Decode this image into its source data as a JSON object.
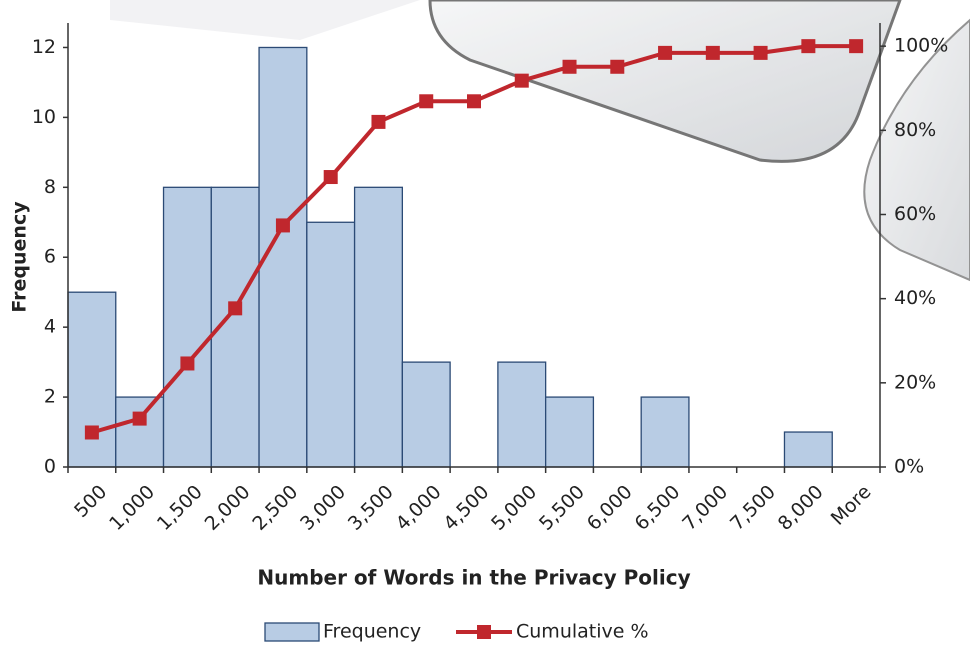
{
  "chart_data": {
    "type": "bar",
    "x_label": "Number of Words in the Privacy Policy",
    "y_label": "Frequency",
    "categories": [
      "500",
      "1,000",
      "1,500",
      "2,000",
      "2,500",
      "3,000",
      "3,500",
      "4,000",
      "4,500",
      "5,000",
      "5,500",
      "6,000",
      "6,500",
      "7,000",
      "7,500",
      "8,000",
      "More"
    ],
    "series": [
      {
        "name": "Frequency",
        "type": "bar",
        "color": "#b8cce4",
        "values": [
          5,
          2,
          8,
          8,
          12,
          7,
          8,
          3,
          0,
          3,
          2,
          0,
          2,
          0,
          0,
          1,
          0
        ]
      },
      {
        "name": "Cumulative %",
        "type": "line",
        "axis": "y2",
        "color": "#c0272d",
        "values": [
          8.2,
          11.5,
          24.6,
          37.7,
          57.4,
          68.9,
          82.0,
          86.9,
          86.9,
          91.8,
          95.1,
          95.1,
          98.4,
          98.4,
          98.4,
          100,
          100
        ]
      }
    ],
    "ylim": [
      0,
      12.7
    ],
    "yticks": [
      0,
      2,
      4,
      6,
      8,
      10,
      12
    ],
    "y2lim": [
      0,
      105.5
    ],
    "y2ticks": [
      {
        "value": 0,
        "label": "0%"
      },
      {
        "value": 20,
        "label": "20%"
      },
      {
        "value": 40,
        "label": "40%"
      },
      {
        "value": 60,
        "label": "60%"
      },
      {
        "value": 80,
        "label": "80%"
      },
      {
        "value": 100,
        "label": "100%"
      }
    ],
    "legend": "bottom"
  }
}
